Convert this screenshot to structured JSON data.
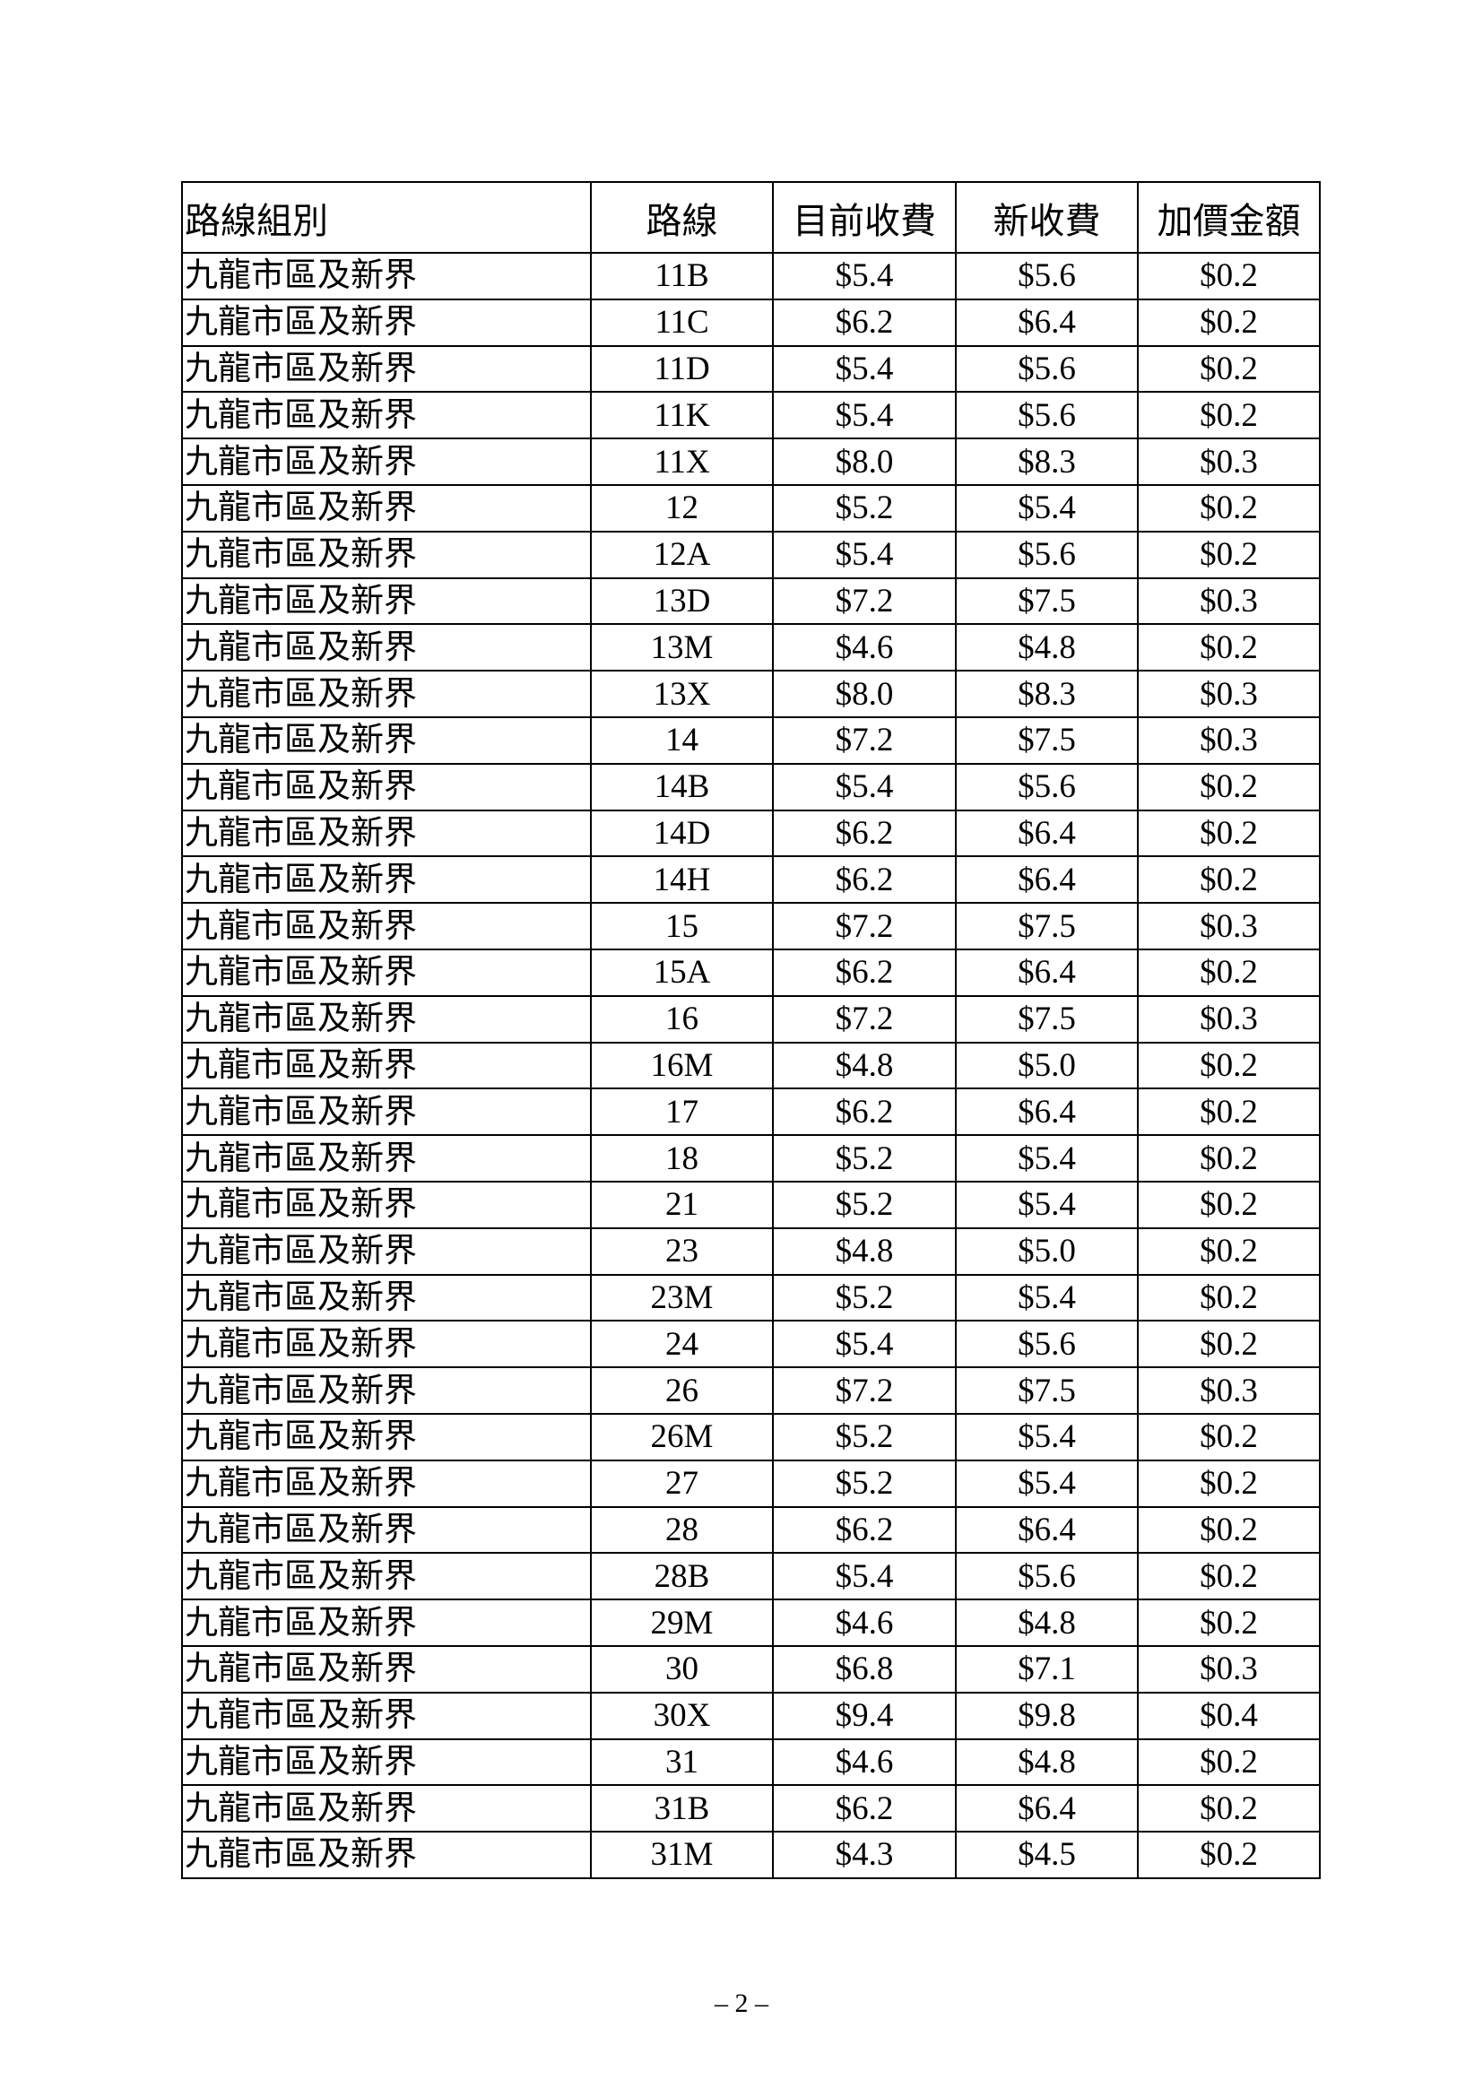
{
  "table": {
    "headers": [
      "路線組別",
      "路線",
      "目前收費",
      "新收費",
      "加價金額"
    ],
    "rows": [
      [
        "九龍市區及新界",
        "11B",
        "$5.4",
        "$5.6",
        "$0.2"
      ],
      [
        "九龍市區及新界",
        "11C",
        "$6.2",
        "$6.4",
        "$0.2"
      ],
      [
        "九龍市區及新界",
        "11D",
        "$5.4",
        "$5.6",
        "$0.2"
      ],
      [
        "九龍市區及新界",
        "11K",
        "$5.4",
        "$5.6",
        "$0.2"
      ],
      [
        "九龍市區及新界",
        "11X",
        "$8.0",
        "$8.3",
        "$0.3"
      ],
      [
        "九龍市區及新界",
        "12",
        "$5.2",
        "$5.4",
        "$0.2"
      ],
      [
        "九龍市區及新界",
        "12A",
        "$5.4",
        "$5.6",
        "$0.2"
      ],
      [
        "九龍市區及新界",
        "13D",
        "$7.2",
        "$7.5",
        "$0.3"
      ],
      [
        "九龍市區及新界",
        "13M",
        "$4.6",
        "$4.8",
        "$0.2"
      ],
      [
        "九龍市區及新界",
        "13X",
        "$8.0",
        "$8.3",
        "$0.3"
      ],
      [
        "九龍市區及新界",
        "14",
        "$7.2",
        "$7.5",
        "$0.3"
      ],
      [
        "九龍市區及新界",
        "14B",
        "$5.4",
        "$5.6",
        "$0.2"
      ],
      [
        "九龍市區及新界",
        "14D",
        "$6.2",
        "$6.4",
        "$0.2"
      ],
      [
        "九龍市區及新界",
        "14H",
        "$6.2",
        "$6.4",
        "$0.2"
      ],
      [
        "九龍市區及新界",
        "15",
        "$7.2",
        "$7.5",
        "$0.3"
      ],
      [
        "九龍市區及新界",
        "15A",
        "$6.2",
        "$6.4",
        "$0.2"
      ],
      [
        "九龍市區及新界",
        "16",
        "$7.2",
        "$7.5",
        "$0.3"
      ],
      [
        "九龍市區及新界",
        "16M",
        "$4.8",
        "$5.0",
        "$0.2"
      ],
      [
        "九龍市區及新界",
        "17",
        "$6.2",
        "$6.4",
        "$0.2"
      ],
      [
        "九龍市區及新界",
        "18",
        "$5.2",
        "$5.4",
        "$0.2"
      ],
      [
        "九龍市區及新界",
        "21",
        "$5.2",
        "$5.4",
        "$0.2"
      ],
      [
        "九龍市區及新界",
        "23",
        "$4.8",
        "$5.0",
        "$0.2"
      ],
      [
        "九龍市區及新界",
        "23M",
        "$5.2",
        "$5.4",
        "$0.2"
      ],
      [
        "九龍市區及新界",
        "24",
        "$5.4",
        "$5.6",
        "$0.2"
      ],
      [
        "九龍市區及新界",
        "26",
        "$7.2",
        "$7.5",
        "$0.3"
      ],
      [
        "九龍市區及新界",
        "26M",
        "$5.2",
        "$5.4",
        "$0.2"
      ],
      [
        "九龍市區及新界",
        "27",
        "$5.2",
        "$5.4",
        "$0.2"
      ],
      [
        "九龍市區及新界",
        "28",
        "$6.2",
        "$6.4",
        "$0.2"
      ],
      [
        "九龍市區及新界",
        "28B",
        "$5.4",
        "$5.6",
        "$0.2"
      ],
      [
        "九龍市區及新界",
        "29M",
        "$4.6",
        "$4.8",
        "$0.2"
      ],
      [
        "九龍市區及新界",
        "30",
        "$6.8",
        "$7.1",
        "$0.3"
      ],
      [
        "九龍市區及新界",
        "30X",
        "$9.4",
        "$9.8",
        "$0.4"
      ],
      [
        "九龍市區及新界",
        "31",
        "$4.6",
        "$4.8",
        "$0.2"
      ],
      [
        "九龍市區及新界",
        "31B",
        "$6.2",
        "$6.4",
        "$0.2"
      ],
      [
        "九龍市區及新界",
        "31M",
        "$4.3",
        "$4.5",
        "$0.2"
      ]
    ]
  },
  "footer": {
    "page_number": "– 2 –"
  }
}
